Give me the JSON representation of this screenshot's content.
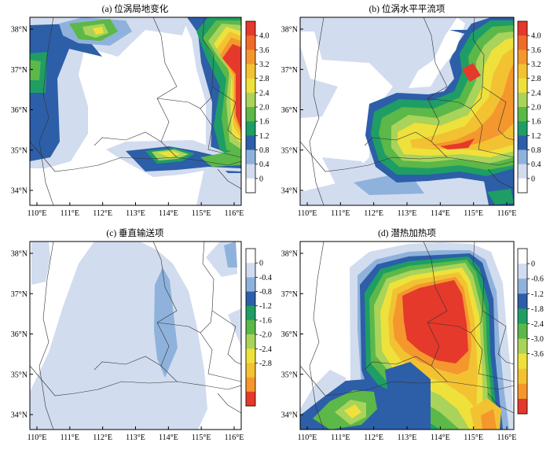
{
  "panels": [
    {
      "title": "(a) 位涡局地变化",
      "y_ticks": [
        "38°N",
        "37°N",
        "36°N",
        "35°N",
        "34°N"
      ],
      "x_ticks": [
        "110°E",
        "111°E",
        "112°E",
        "113°E",
        "114°E",
        "115°E",
        "116°E"
      ],
      "colorbar": {
        "labels": [
          "4.0",
          "3.6",
          "3.2",
          "2.8",
          "2.4",
          "2.0",
          "1.6",
          "1.2",
          "0.8",
          "0.4",
          "0"
        ],
        "colors": [
          "#e5392b",
          "#f06a2a",
          "#f4972d",
          "#f2c232",
          "#eee13c",
          "#a9d35a",
          "#5cb848",
          "#1e9e64",
          "#2d5ea8",
          "#8fb2dc",
          "#d2dcef",
          "#ffffff"
        ]
      }
    },
    {
      "title": "(b) 位涡水平平流项",
      "y_ticks": [
        "38°N",
        "37°N",
        "36°N",
        "35°N",
        "34°N"
      ],
      "x_ticks": [
        "110°E",
        "111°E",
        "112°E",
        "113°E",
        "114°E",
        "115°E",
        "116°E"
      ],
      "colorbar": {
        "labels": [
          "4.0",
          "3.6",
          "3.2",
          "2.8",
          "2.4",
          "2.0",
          "1.6",
          "1.2",
          "0.8",
          "0.4",
          "0"
        ],
        "colors": [
          "#e5392b",
          "#f06a2a",
          "#f4972d",
          "#f2c232",
          "#eee13c",
          "#a9d35a",
          "#5cb848",
          "#1e9e64",
          "#2d5ea8",
          "#8fb2dc",
          "#d2dcef",
          "#ffffff"
        ]
      }
    },
    {
      "title": "(c) 垂直输送项",
      "y_ticks": [
        "38°N",
        "37°N",
        "36°N",
        "35°N",
        "34°N"
      ],
      "x_ticks": [
        "110°E",
        "111°E",
        "112°E",
        "113°E",
        "114°E",
        "115°E",
        "116°E"
      ],
      "colorbar": {
        "labels": [
          "0",
          "-0.4",
          "-0.8",
          "-1.2",
          "-1.6",
          "-2.0",
          "-2.4",
          "-2.8"
        ],
        "colors": [
          "#ffffff",
          "#d2dcef",
          "#8fb2dc",
          "#2d5ea8",
          "#1e9e64",
          "#5cb848",
          "#a9d35a",
          "#eee13c",
          "#f2c232",
          "#f4972d",
          "#e5392b"
        ]
      }
    },
    {
      "title": "(d) 潜热加热项",
      "y_ticks": [
        "38°N",
        "37°N",
        "36°N",
        "35°N",
        "34°N"
      ],
      "x_ticks": [
        "110°E",
        "111°E",
        "112°E",
        "113°E",
        "114°E",
        "115°E",
        "116°E"
      ],
      "colorbar": {
        "labels": [
          "0",
          "-0.6",
          "-1.2",
          "-1.8",
          "-2.4",
          "-3.0",
          "-3.6"
        ],
        "colors": [
          "#ffffff",
          "#d2dcef",
          "#8fb2dc",
          "#2d5ea8",
          "#1e9e64",
          "#5cb848",
          "#a9d35a",
          "#eee13c",
          "#f2c232",
          "#f4972d",
          "#e5392b"
        ]
      }
    }
  ]
}
